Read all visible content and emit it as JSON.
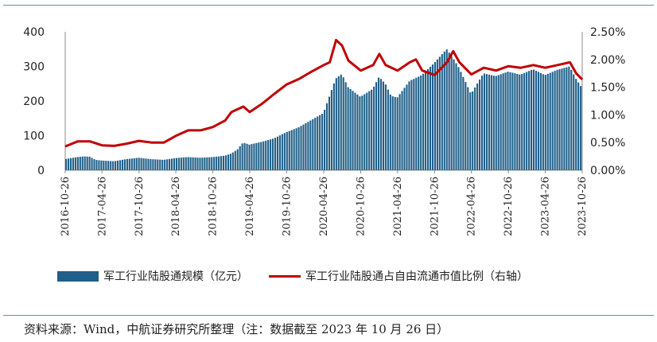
{
  "chart_data": {
    "type": "bar+line",
    "x_ticks": [
      "2016-10-26",
      "2017-04-26",
      "2017-10-26",
      "2018-04-26",
      "2018-10-26",
      "2019-04-26",
      "2019-10-26",
      "2020-04-26",
      "2020-10-26",
      "2021-04-26",
      "2021-10-26",
      "2022-04-26",
      "2022-10-26",
      "2023-04-26",
      "2023-10-26"
    ],
    "y_left_ticks": [
      "0",
      "100",
      "200",
      "300",
      "400"
    ],
    "y_right_ticks": [
      "0.00%",
      "0.50%",
      "1.00%",
      "1.50%",
      "2.00%",
      "2.50%"
    ],
    "ylim_left": [
      0,
      400
    ],
    "ylim_right": [
      0,
      2.5
    ],
    "series": [
      {
        "name": "军工行业陆股通规模（亿元）",
        "type": "bar",
        "axis": "left",
        "color": "#1f5f89",
        "points": [
          [
            "2016-10-26",
            32
          ],
          [
            "2016-12-26",
            38
          ],
          [
            "2017-01-26",
            40
          ],
          [
            "2017-02-26",
            39
          ],
          [
            "2017-03-26",
            30
          ],
          [
            "2017-04-26",
            28
          ],
          [
            "2017-06-26",
            26
          ],
          [
            "2017-08-26",
            32
          ],
          [
            "2017-10-26",
            36
          ],
          [
            "2017-12-26",
            32
          ],
          [
            "2018-02-26",
            30
          ],
          [
            "2018-04-26",
            35
          ],
          [
            "2018-06-26",
            38
          ],
          [
            "2018-08-26",
            36
          ],
          [
            "2018-10-26",
            38
          ],
          [
            "2018-12-26",
            42
          ],
          [
            "2019-01-26",
            48
          ],
          [
            "2019-02-26",
            60
          ],
          [
            "2019-03-26",
            80
          ],
          [
            "2019-04-26",
            74
          ],
          [
            "2019-06-26",
            82
          ],
          [
            "2019-08-26",
            92
          ],
          [
            "2019-10-26",
            110
          ],
          [
            "2019-12-26",
            124
          ],
          [
            "2020-02-26",
            145
          ],
          [
            "2020-04-26",
            165
          ],
          [
            "2020-06-26",
            265
          ],
          [
            "2020-07-26",
            278
          ],
          [
            "2020-08-26",
            240
          ],
          [
            "2020-10-26",
            212
          ],
          [
            "2020-12-26",
            235
          ],
          [
            "2021-01-26",
            270
          ],
          [
            "2021-02-26",
            250
          ],
          [
            "2021-03-26",
            215
          ],
          [
            "2021-04-26",
            210
          ],
          [
            "2021-06-26",
            258
          ],
          [
            "2021-08-26",
            275
          ],
          [
            "2021-10-26",
            310
          ],
          [
            "2021-12-26",
            350
          ],
          [
            "2022-01-26",
            325
          ],
          [
            "2022-02-26",
            295
          ],
          [
            "2022-03-26",
            260
          ],
          [
            "2022-04-26",
            220
          ],
          [
            "2022-06-26",
            280
          ],
          [
            "2022-08-26",
            272
          ],
          [
            "2022-10-26",
            285
          ],
          [
            "2022-12-26",
            276
          ],
          [
            "2023-02-26",
            292
          ],
          [
            "2023-04-26",
            275
          ],
          [
            "2023-06-26",
            290
          ],
          [
            "2023-08-26",
            300
          ],
          [
            "2023-09-26",
            265
          ],
          [
            "2023-10-26",
            238
          ]
        ]
      },
      {
        "name": "军工行业陆股通占自由流通市值比例（右轴）",
        "type": "line",
        "axis": "right",
        "color": "#c00000",
        "points": [
          [
            "2016-10-26",
            0.43
          ],
          [
            "2016-12-26",
            0.52
          ],
          [
            "2017-02-26",
            0.52
          ],
          [
            "2017-04-26",
            0.45
          ],
          [
            "2017-06-26",
            0.44
          ],
          [
            "2017-08-26",
            0.48
          ],
          [
            "2017-10-26",
            0.53
          ],
          [
            "2017-12-26",
            0.5
          ],
          [
            "2018-02-26",
            0.5
          ],
          [
            "2018-04-26",
            0.62
          ],
          [
            "2018-06-26",
            0.72
          ],
          [
            "2018-08-26",
            0.72
          ],
          [
            "2018-10-26",
            0.78
          ],
          [
            "2018-12-26",
            0.9
          ],
          [
            "2019-01-26",
            1.05
          ],
          [
            "2019-03-26",
            1.15
          ],
          [
            "2019-04-26",
            1.05
          ],
          [
            "2019-06-26",
            1.2
          ],
          [
            "2019-08-26",
            1.38
          ],
          [
            "2019-10-26",
            1.55
          ],
          [
            "2019-12-26",
            1.65
          ],
          [
            "2020-02-26",
            1.78
          ],
          [
            "2020-04-26",
            1.9
          ],
          [
            "2020-05-26",
            1.95
          ],
          [
            "2020-06-26",
            2.35
          ],
          [
            "2020-07-26",
            2.25
          ],
          [
            "2020-08-26",
            1.98
          ],
          [
            "2020-10-26",
            1.8
          ],
          [
            "2020-12-26",
            1.9
          ],
          [
            "2021-01-26",
            2.1
          ],
          [
            "2021-02-26",
            1.9
          ],
          [
            "2021-04-26",
            1.8
          ],
          [
            "2021-06-26",
            1.95
          ],
          [
            "2021-07-26",
            2.0
          ],
          [
            "2021-08-26",
            1.8
          ],
          [
            "2021-10-26",
            1.72
          ],
          [
            "2021-12-26",
            1.95
          ],
          [
            "2022-01-26",
            2.15
          ],
          [
            "2022-02-26",
            1.95
          ],
          [
            "2022-04-26",
            1.73
          ],
          [
            "2022-06-26",
            1.85
          ],
          [
            "2022-08-26",
            1.8
          ],
          [
            "2022-10-26",
            1.88
          ],
          [
            "2022-12-26",
            1.85
          ],
          [
            "2023-02-26",
            1.9
          ],
          [
            "2023-04-26",
            1.85
          ],
          [
            "2023-06-26",
            1.9
          ],
          [
            "2023-08-26",
            1.95
          ],
          [
            "2023-09-26",
            1.75
          ],
          [
            "2023-10-26",
            1.64
          ]
        ]
      }
    ]
  },
  "source": {
    "text": "资料来源：Wind，中航证券研究所整理（注：数据截至 2023 年 10 月 26 日）"
  },
  "colors": {
    "bar": "#1f5f89",
    "line": "#c00000",
    "rule": "#6f8aa3"
  }
}
